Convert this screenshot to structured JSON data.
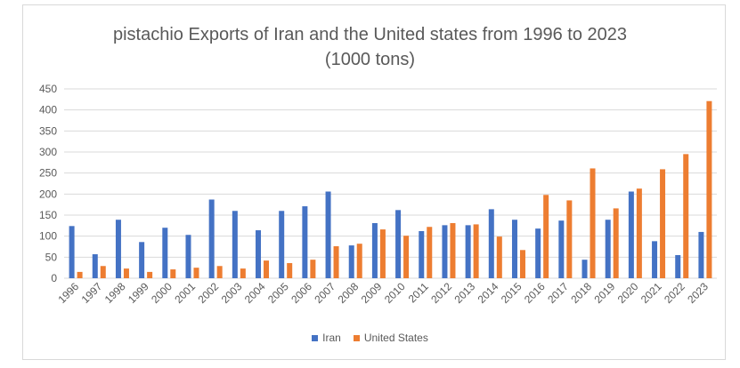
{
  "chart_data": {
    "type": "bar",
    "title": "pistachio Exports of Iran and the United states from 1996 to 2023",
    "subtitle": "(1000 tons)",
    "xlabel": "",
    "ylabel": "",
    "ylim": [
      0,
      450
    ],
    "yticks": [
      0,
      50,
      100,
      150,
      200,
      250,
      300,
      350,
      400,
      450
    ],
    "grid": true,
    "legend_position": "bottom",
    "categories": [
      "1996",
      "1997",
      "1998",
      "1999",
      "2000",
      "2001",
      "2002",
      "2003",
      "2004",
      "2005",
      "2006",
      "2007",
      "2008",
      "2009",
      "2010",
      "2011",
      "2012",
      "2013",
      "2014",
      "2015",
      "2016",
      "2017",
      "2018",
      "2019",
      "2020",
      "2021",
      "2022",
      "2023"
    ],
    "series": [
      {
        "name": "Iran",
        "color": "#4472c4",
        "values": [
          124,
          57,
          139,
          86,
          120,
          103,
          187,
          160,
          114,
          160,
          171,
          206,
          78,
          131,
          162,
          112,
          126,
          126,
          164,
          139,
          118,
          137,
          44,
          139,
          206,
          88,
          55,
          110
        ]
      },
      {
        "name": "United States",
        "color": "#ed7d31",
        "values": [
          15,
          29,
          23,
          15,
          21,
          25,
          29,
          23,
          42,
          36,
          44,
          76,
          82,
          116,
          101,
          122,
          131,
          128,
          99,
          67,
          198,
          185,
          261,
          166,
          213,
          259,
          295,
          421
        ]
      }
    ]
  }
}
